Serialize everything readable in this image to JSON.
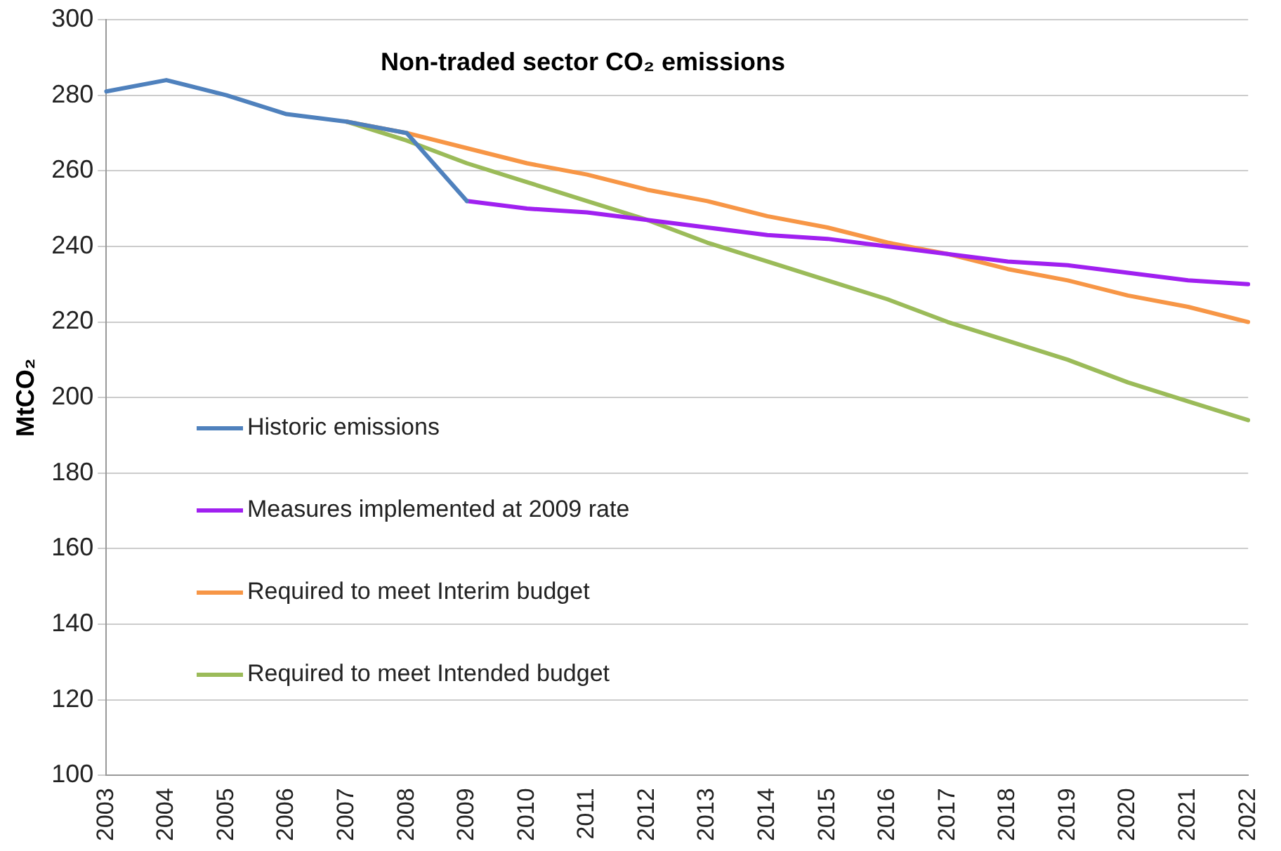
{
  "chart_data": {
    "type": "line",
    "title": "Non-traded sector CO₂ emissions",
    "ylabel": "MtCO₂",
    "categories": [
      "2003",
      "2004",
      "2005",
      "2006",
      "2007",
      "2008",
      "2009",
      "2010",
      "2011",
      "2012",
      "2013",
      "2014",
      "2015",
      "2016",
      "2017",
      "2018",
      "2019",
      "2020",
      "2021",
      "2022"
    ],
    "series": [
      {
        "name": "Historic emissions",
        "color": "#4f81bd",
        "values": [
          281,
          284,
          280,
          275,
          273,
          270,
          252,
          null,
          null,
          null,
          null,
          null,
          null,
          null,
          null,
          null,
          null,
          null,
          null,
          null
        ]
      },
      {
        "name": "Measures implemented at 2009 rate",
        "color": "#a020f0",
        "values": [
          null,
          null,
          null,
          null,
          null,
          null,
          252,
          250,
          249,
          247,
          245,
          243,
          242,
          240,
          238,
          236,
          235,
          233,
          231,
          230
        ]
      },
      {
        "name": "Required to meet Interim budget",
        "color": "#f79646",
        "values": [
          null,
          null,
          null,
          null,
          273,
          270,
          266,
          262,
          259,
          255,
          252,
          248,
          245,
          241,
          238,
          234,
          231,
          227,
          224,
          220
        ]
      },
      {
        "name": "Required to meet Intended budget",
        "color": "#9bbb59",
        "values": [
          null,
          null,
          null,
          null,
          273,
          268,
          262,
          257,
          252,
          247,
          241,
          236,
          231,
          226,
          220,
          215,
          210,
          204,
          199,
          194
        ]
      }
    ],
    "ylim": [
      100,
      300
    ],
    "yticks": [
      100,
      120,
      140,
      160,
      180,
      200,
      220,
      240,
      260,
      280,
      300
    ],
    "grid": "y",
    "legend": "left",
    "marker": "none",
    "line_style": "solid"
  }
}
